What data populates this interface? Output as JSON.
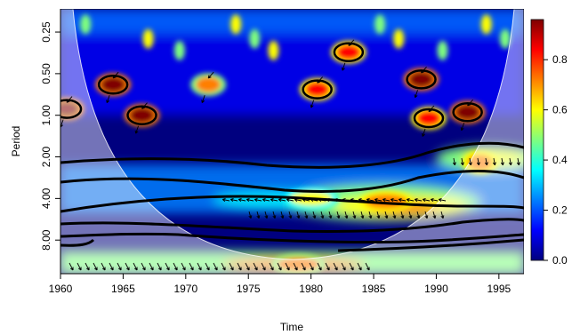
{
  "chart_data": {
    "type": "heatmap",
    "subtype": "wavelet-coherence",
    "xlabel": "Time",
    "ylabel": "Period",
    "x_ticks": [
      1960,
      1965,
      1970,
      1975,
      1980,
      1985,
      1990,
      1995
    ],
    "x_range": [
      1960,
      1997
    ],
    "y_scale": "log2",
    "y_ticks": [
      0.25,
      0.5,
      1,
      2,
      4,
      8
    ],
    "y_tick_labels": [
      "0.25",
      "0.50",
      "1.00",
      "2.00",
      "4.00",
      "8.00"
    ],
    "y_range": [
      0.17,
      14
    ],
    "y_reversed": true,
    "colorbar": {
      "ticks": [
        0.0,
        0.2,
        0.4,
        0.6,
        0.8
      ],
      "tick_labels": [
        "0.0",
        "0.2",
        "0.4",
        "0.6",
        "0.8"
      ],
      "range": [
        0,
        0.96
      ],
      "colors": [
        "#00007f",
        "#0000ff",
        "#007fff",
        "#00ffff",
        "#7fff7f",
        "#ffff00",
        "#ff7f00",
        "#ff0000",
        "#7f0000"
      ]
    },
    "cone_of_influence": true,
    "significance_contours": true,
    "phase_arrows": true,
    "hotspots": [
      {
        "year": 1964.2,
        "period": 0.6,
        "value": 0.95
      },
      {
        "year": 1966.5,
        "period": 1.0,
        "value": 0.9
      },
      {
        "year": 1960.5,
        "period": 0.9,
        "value": 0.9
      },
      {
        "year": 1980.5,
        "period": 0.65,
        "value": 0.85
      },
      {
        "year": 1983.0,
        "period": 0.35,
        "value": 0.85
      },
      {
        "year": 1988.8,
        "period": 0.55,
        "value": 0.9
      },
      {
        "year": 1989.4,
        "period": 1.05,
        "value": 0.85
      },
      {
        "year": 1992.5,
        "period": 0.95,
        "value": 0.9
      },
      {
        "year": 1971.8,
        "period": 0.6,
        "value": 0.7
      },
      {
        "year": 1993.5,
        "period": 2.2,
        "value": 0.75
      },
      {
        "year": 1980.0,
        "period": 4.0,
        "value": 0.55
      },
      {
        "year": 1986.0,
        "period": 4.2,
        "value": 0.75
      },
      {
        "year": 1979.0,
        "period": 12.0,
        "value": 0.7
      }
    ]
  }
}
